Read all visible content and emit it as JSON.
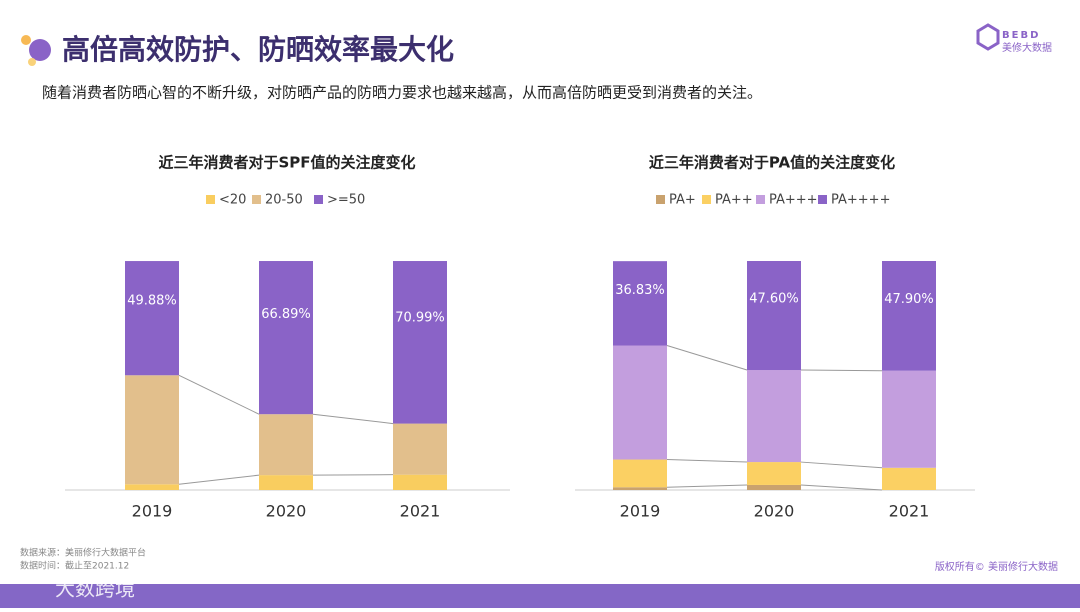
{
  "page": {
    "title": "高倍高效防护、防晒效率最大化",
    "subtitle": "随着消费者防晒心智的不断升级，对防晒产品的防晒力要求也越来越高，从而高倍防晒更受到消费者的关注。",
    "logo_mark": "BEBD",
    "logo_text": "美修大数据",
    "source": "数据来源：美丽修行大数据平台",
    "date": "数据时间：截止至2021.12",
    "copyright": "版权所有© 美丽修行大数据",
    "watermark": "大数跨境"
  },
  "chart_data": [
    {
      "type": "stacked_bar",
      "title": "近三年消费者对于SPF值的关注度变化",
      "categories": [
        "2019",
        "2020",
        "2021"
      ],
      "ylim": [
        0,
        100
      ],
      "series": [
        {
          "name": "<20",
          "color": "#f9cd5f",
          "values": [
            2.5,
            6.5,
            6.7
          ]
        },
        {
          "name": "20-50",
          "color": "#e2bf8c",
          "values": [
            47.6,
            26.6,
            22.3
          ]
        },
        {
          "name": ">=50",
          "color": "#8a63c7",
          "values": [
            49.88,
            66.89,
            70.99
          ],
          "value_labels": [
            "49.88%",
            "66.89%",
            "70.99%"
          ]
        }
      ]
    },
    {
      "type": "stacked_bar",
      "title": "近三年消费者对于PA值的关注度变化",
      "categories": [
        "2019",
        "2020",
        "2021"
      ],
      "ylim": [
        0,
        100
      ],
      "series": [
        {
          "name": "PA+",
          "color": "#c9a26e",
          "values": [
            1.2,
            2.2,
            0
          ]
        },
        {
          "name": "PA++",
          "color": "#fbd063",
          "values": [
            12.1,
            10.0,
            9.7
          ]
        },
        {
          "name": "PA+++",
          "color": "#c39ede",
          "values": [
            49.8,
            40.2,
            42.4
          ]
        },
        {
          "name": "PA++++",
          "color": "#8a63c7",
          "values": [
            36.83,
            47.6,
            47.9
          ],
          "value_labels": [
            "36.83%",
            "47.60%",
            "47.90%"
          ]
        }
      ]
    }
  ]
}
